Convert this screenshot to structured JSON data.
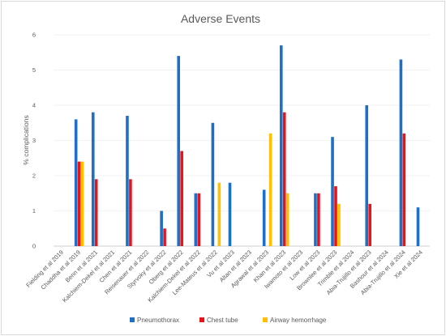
{
  "chart_data": {
    "type": "bar",
    "title": "Adverse Events",
    "xlabel": "",
    "ylabel": "% complications",
    "ylim": [
      0,
      6
    ],
    "yticks": [
      0,
      1,
      2,
      3,
      4,
      5,
      6
    ],
    "grid": true,
    "legend_position": "bottom",
    "categories": [
      "Fielding et al 2019",
      "Chaddha et al 2019",
      "Benn et al 2021",
      "Kalchiem-Dekel et al 2021",
      "Chen et al 2021",
      "Reisenauer et al 2022",
      "Styrvoky et al 2022",
      "Oberg et al 2022",
      "Kalchiem-Dekel et al 2022",
      "Lee-Mateus et al 2022",
      "Vu et al 2023",
      "Altan et al 2023",
      "Agrawal et al 2023",
      "Khan et al 2023",
      "Iwamoto et al 2023",
      "Low et al 2023",
      "Brownlee et al 2023",
      "Trimble et al 2024",
      "Abia-Trujillo et al 2023",
      "Bashour et al 2024",
      "Abia-Trujillo et al 2024",
      "Xie et al 2024"
    ],
    "series": [
      {
        "name": "Pneumothorax",
        "color": "#1f6fc5",
        "values": [
          0,
          3.6,
          3.8,
          0,
          3.7,
          0,
          1.0,
          5.4,
          1.5,
          3.5,
          1.8,
          0,
          1.6,
          5.7,
          0,
          1.5,
          3.1,
          0,
          4.0,
          0,
          5.3,
          1.1
        ]
      },
      {
        "name": "Chest tube",
        "color": "#e8141c",
        "values": [
          0,
          2.4,
          1.9,
          0,
          1.9,
          0,
          0.5,
          2.7,
          1.5,
          0,
          0,
          0,
          0,
          3.8,
          0,
          1.5,
          1.7,
          0,
          1.2,
          0,
          3.2,
          0
        ]
      },
      {
        "name": "Airway hemorrhage",
        "color": "#ffc000",
        "values": [
          0,
          2.4,
          0,
          0,
          0,
          0,
          0,
          0,
          0,
          1.8,
          0,
          0,
          3.2,
          1.5,
          0,
          0,
          1.2,
          0,
          0,
          0,
          0,
          0
        ]
      }
    ]
  }
}
